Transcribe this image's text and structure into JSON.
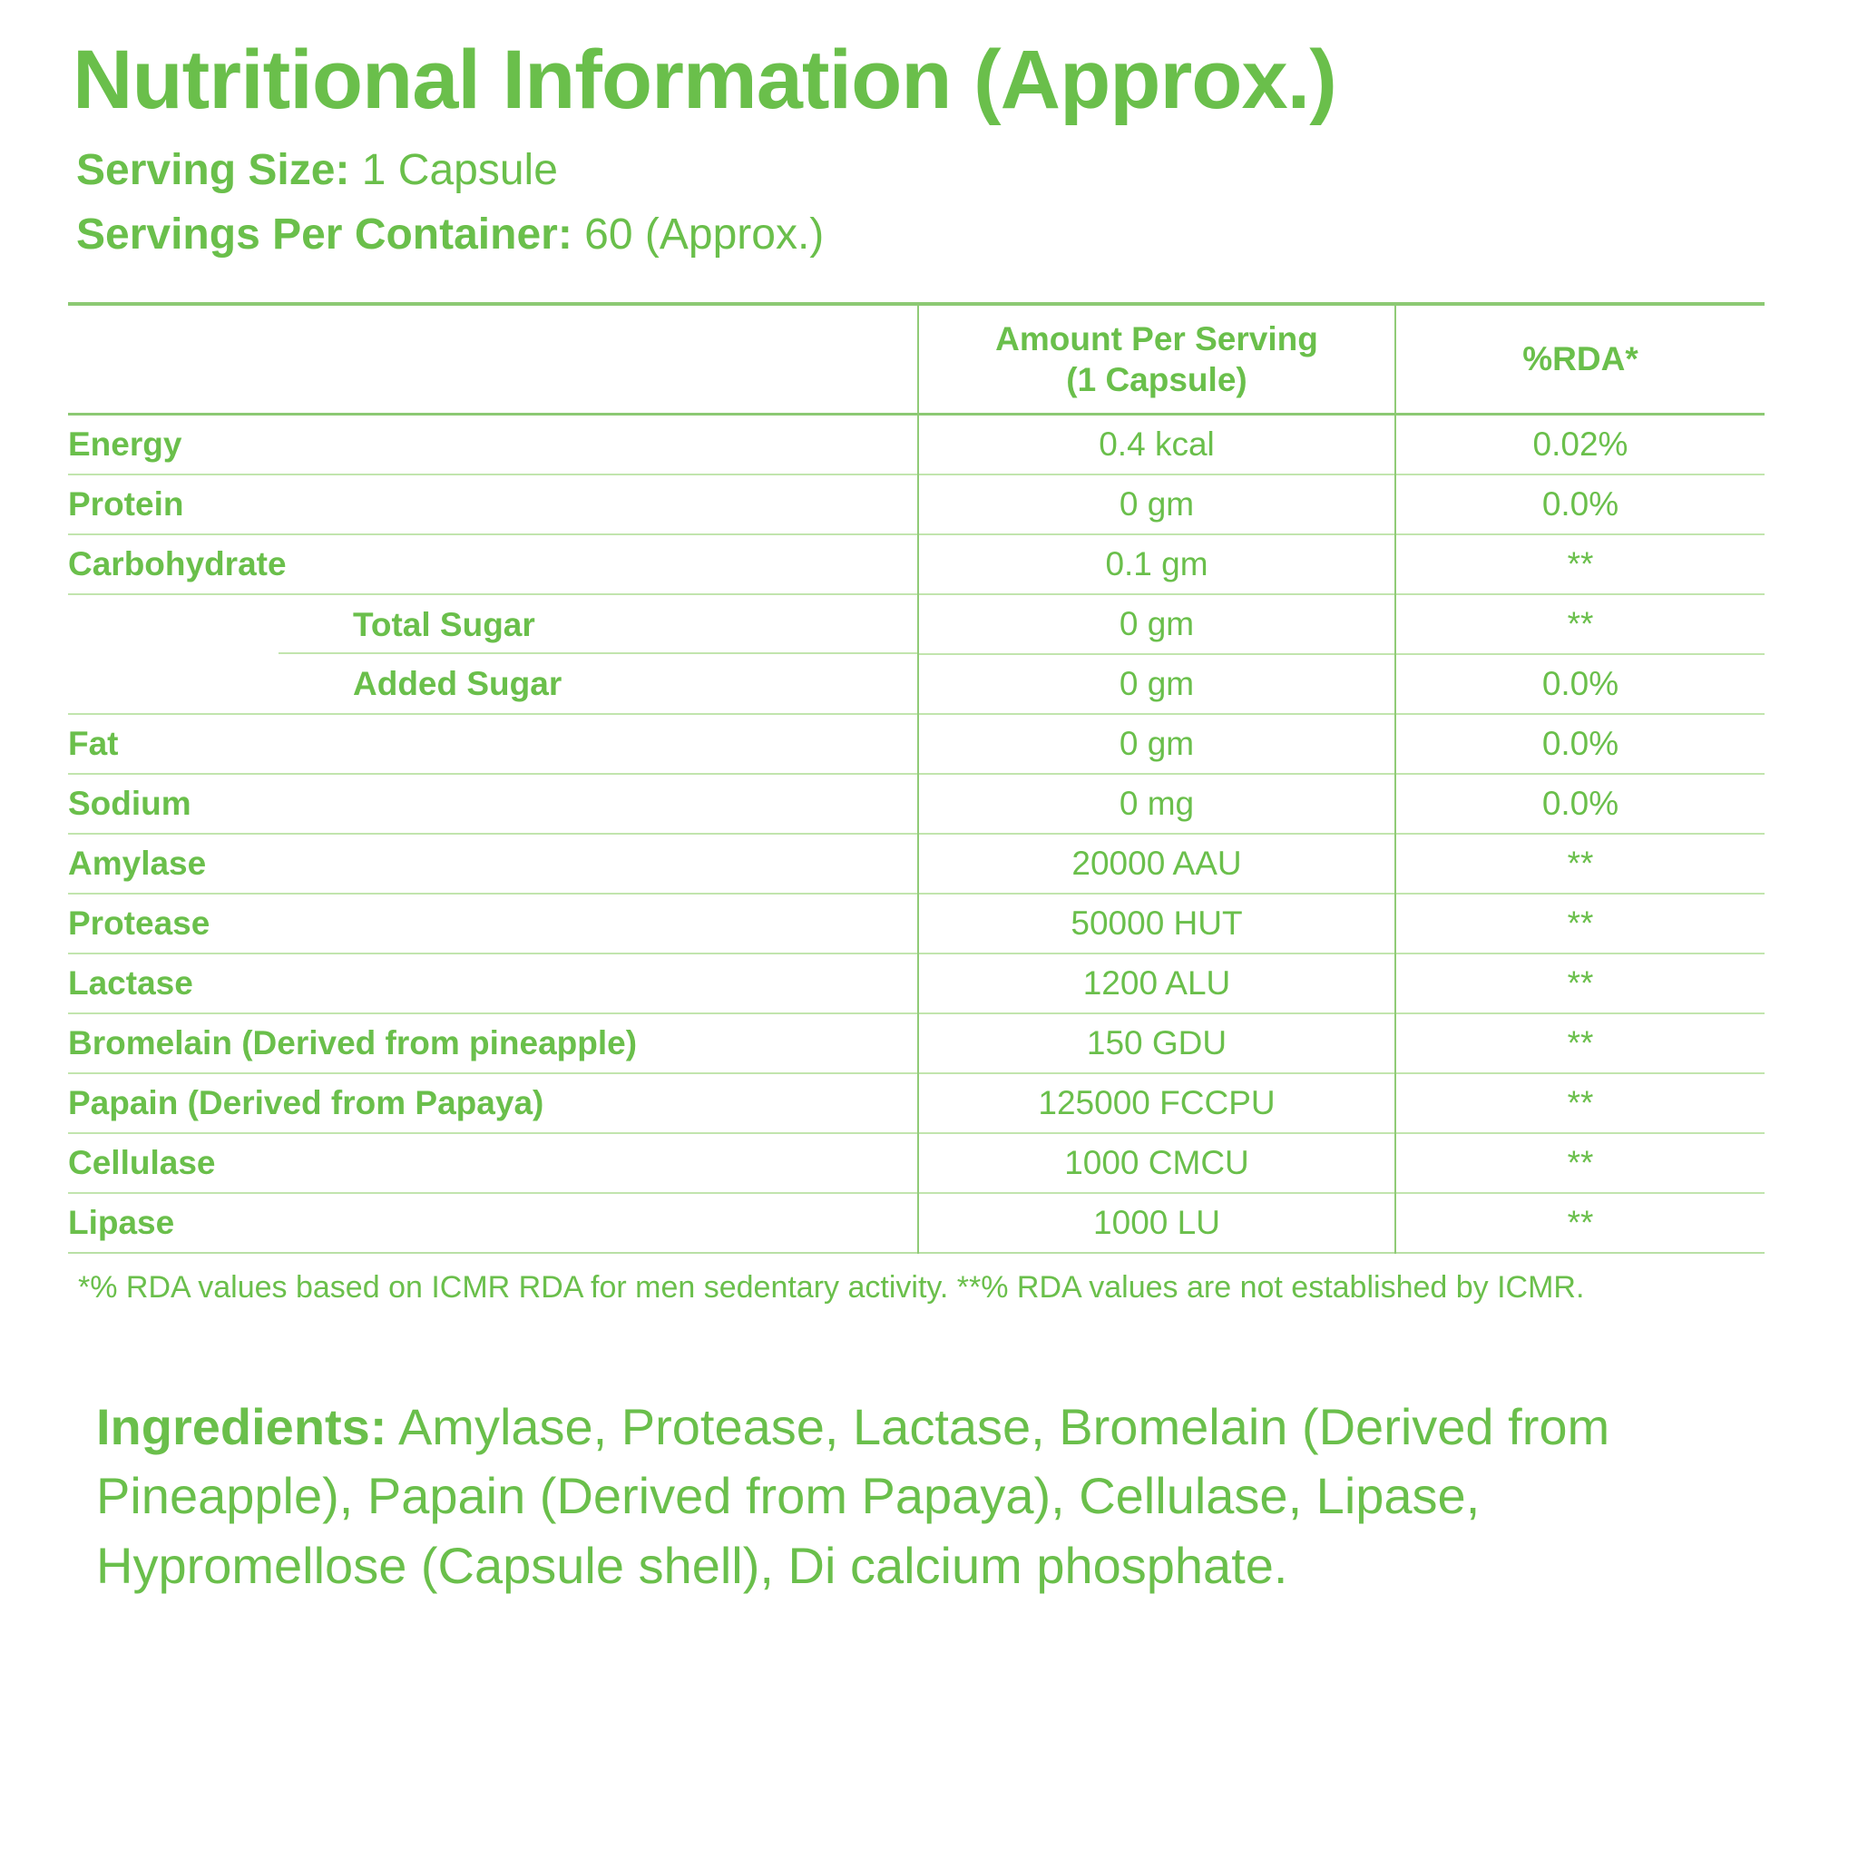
{
  "title": "Nutritional Information (Approx.)",
  "serving_size": {
    "label": "Serving Size:",
    "value": " 1 Capsule"
  },
  "servings_per_container": {
    "label": "Servings Per Container:",
    "value": " 60 (Approx.)"
  },
  "table": {
    "headers": {
      "nutrient": "",
      "amount_line1": "Amount Per Serving",
      "amount_line2": "(1 Capsule)",
      "rda": "%RDA*"
    },
    "rows": [
      {
        "label": "Energy",
        "amount": "0.4 kcal",
        "rda": "0.02%"
      },
      {
        "label": "Protein",
        "amount": "0 gm",
        "rda": "0.0%"
      },
      {
        "label": "Carbohydrate",
        "amount": "0.1 gm",
        "rda": "**"
      },
      {
        "label": "Total Sugar",
        "amount": "0 gm",
        "rda": "**"
      },
      {
        "label": "Added Sugar",
        "amount": "0 gm",
        "rda": "0.0%"
      },
      {
        "label": "Fat",
        "amount": "0 gm",
        "rda": "0.0%"
      },
      {
        "label": "Sodium",
        "amount": "0 mg",
        "rda": "0.0%"
      },
      {
        "label": "Amylase",
        "amount": "20000 AAU",
        "rda": "**"
      },
      {
        "label": "Protease",
        "amount": "50000 HUT",
        "rda": "**"
      },
      {
        "label": "Lactase",
        "amount": "1200 ALU",
        "rda": "**"
      },
      {
        "label": "Bromelain (Derived from pineapple)",
        "amount": "150 GDU",
        "rda": "**"
      },
      {
        "label": "Papain (Derived from Papaya)",
        "amount": "125000 FCCPU",
        "rda": "**"
      },
      {
        "label": "Cellulase",
        "amount": "1000 CMCU",
        "rda": "**"
      },
      {
        "label": "Lipase",
        "amount": "1000 LU",
        "rda": "**"
      }
    ]
  },
  "footnote": "*% RDA values based on ICMR RDA for men sedentary activity. **% RDA values are not established by ICMR.",
  "ingredients": {
    "label": "Ingredients:",
    "text": " Amylase, Protease, Lactase, Bromelain (Derived from Pineapple), Papain (Derived from Papaya), Cellulase, Lipase, Hypromellose (Capsule shell), Di calcium phosphate."
  },
  "colors": {
    "text_green": "#6abf4b",
    "border_strong": "#8cc973",
    "border_light": "#c2e5ae",
    "divider": "#90cb77",
    "background": "#ffffff"
  }
}
